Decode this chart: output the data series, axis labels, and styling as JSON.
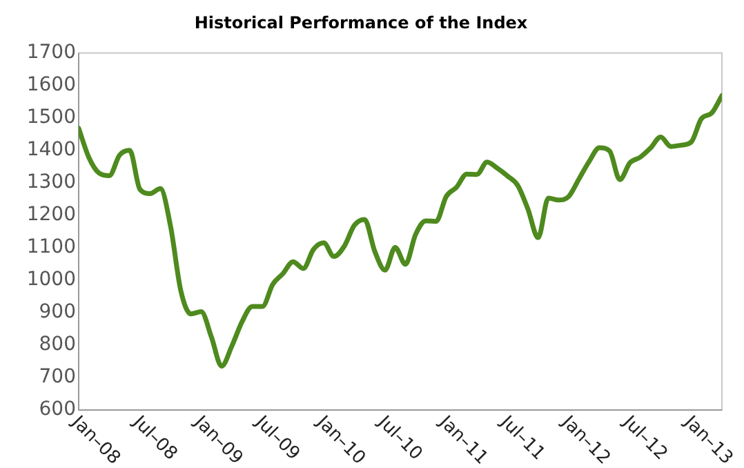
{
  "chart_data": {
    "type": "line",
    "title": "Historical Performance of the Index",
    "x": [
      "2008-01",
      "2008-02",
      "2008-03",
      "2008-04",
      "2008-05",
      "2008-06",
      "2008-07",
      "2008-08",
      "2008-09",
      "2008-10",
      "2008-11",
      "2008-12",
      "2009-01",
      "2009-02",
      "2009-03",
      "2009-04",
      "2009-05",
      "2009-06",
      "2009-07",
      "2009-08",
      "2009-09",
      "2009-10",
      "2009-11",
      "2009-12",
      "2010-01",
      "2010-02",
      "2010-03",
      "2010-04",
      "2010-05",
      "2010-06",
      "2010-07",
      "2010-08",
      "2010-09",
      "2010-10",
      "2010-11",
      "2010-12",
      "2011-01",
      "2011-02",
      "2011-03",
      "2011-04",
      "2011-05",
      "2011-06",
      "2011-07",
      "2011-08",
      "2011-09",
      "2011-10",
      "2011-11",
      "2011-12",
      "2012-01",
      "2012-02",
      "2012-03",
      "2012-04",
      "2012-05",
      "2012-06",
      "2012-07",
      "2012-08",
      "2012-09",
      "2012-10",
      "2012-11",
      "2012-12",
      "2013-01",
      "2013-02",
      "2013-03",
      "2013-04"
    ],
    "series": [
      {
        "color": "#4e8a1e",
        "values": [
          1468,
          1378,
          1330,
          1322,
          1385,
          1400,
          1280,
          1267,
          1282,
          1166,
          968,
          896,
          903,
          825,
          735,
          797,
          872,
          919,
          919,
          987,
          1020,
          1057,
          1036,
          1095,
          1115,
          1073,
          1104,
          1169,
          1187,
          1089,
          1031,
          1101,
          1049,
          1141,
          1183,
          1181,
          1258,
          1286,
          1327,
          1326,
          1364,
          1345,
          1321,
          1292,
          1219,
          1131,
          1253,
          1247,
          1258,
          1312,
          1366,
          1408,
          1398,
          1310,
          1362,
          1379,
          1407,
          1441,
          1412,
          1416,
          1426,
          1498,
          1515,
          1569
        ]
      }
    ],
    "xlim": [
      "2008-01",
      "2013-04"
    ],
    "xticks": [
      {
        "value": "2008-01",
        "label": "Jan–08"
      },
      {
        "value": "2008-07",
        "label": "Jul–08"
      },
      {
        "value": "2009-01",
        "label": "Jan–09"
      },
      {
        "value": "2009-07",
        "label": "Jul–09"
      },
      {
        "value": "2010-01",
        "label": "Jan–10"
      },
      {
        "value": "2010-07",
        "label": "Jul–10"
      },
      {
        "value": "2011-01",
        "label": "Jan–11"
      },
      {
        "value": "2011-07",
        "label": "Jul–11"
      },
      {
        "value": "2012-01",
        "label": "Jan–12"
      },
      {
        "value": "2012-07",
        "label": "Jul–12"
      },
      {
        "value": "2013-01",
        "label": "Jan–13"
      }
    ],
    "ylim": [
      600,
      1700
    ],
    "yticks": [
      600,
      700,
      800,
      900,
      1000,
      1100,
      1200,
      1300,
      1400,
      1500,
      1600,
      1700
    ],
    "grid": false,
    "legend": false,
    "marker": "none",
    "line_style": "solid"
  }
}
